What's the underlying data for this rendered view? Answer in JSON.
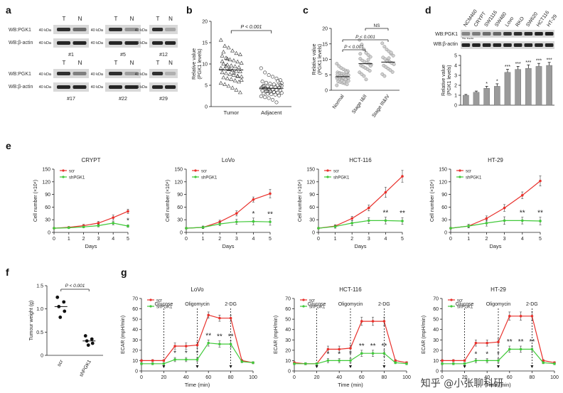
{
  "watermark": "知乎 @小张聊科研",
  "panel_letters": [
    "a",
    "b",
    "c",
    "d",
    "e",
    "f",
    "g"
  ],
  "panel_a": {
    "headers": [
      "T",
      "N"
    ],
    "row_labels": [
      "WB:PGK1",
      "WB:β-actin"
    ],
    "kda_pgk1": "40 kDa",
    "kda_actin": "40 kDa",
    "samples": [
      "#1",
      "#5",
      "#12",
      "#17",
      "#22",
      "#29"
    ]
  },
  "panel_c_ns": "NS",
  "panel_d": {
    "row_labels": [
      "WB:PGK1",
      "WB:β-actin"
    ],
    "kda": "40 kDa"
  },
  "chart_data": [
    {
      "id": "b",
      "type": "scatter",
      "categories": [
        "Tumor",
        "Adjacent"
      ],
      "ylabel": "Relative value\n(PGK1 levels)",
      "ylim": [
        0,
        20
      ],
      "yticks": [
        0,
        5,
        10,
        15,
        20
      ],
      "annotation": "P < 0.001",
      "means": [
        8.6,
        4.3
      ],
      "points": [
        [
          15.6,
          14.2,
          13.8,
          13.1,
          12.5,
          12.2,
          11.9,
          11.4,
          11.0,
          10.8,
          10.5,
          10.2,
          10.0,
          9.8,
          9.6,
          9.4,
          9.2,
          9.0,
          8.9,
          8.7,
          8.5,
          8.3,
          8.2,
          8.0,
          7.8,
          7.6,
          7.4,
          7.2,
          7.0,
          6.8,
          6.6,
          6.4,
          6.1,
          5.8,
          5.5,
          5.2,
          4.8,
          4.4,
          3.9,
          3.3,
          10.6,
          9.5,
          8.8,
          7.9,
          7.1,
          6.2,
          12.8,
          11.2
        ],
        [
          9.0,
          8.0,
          7.4,
          7.0,
          6.6,
          6.2,
          5.9,
          5.6,
          5.4,
          5.2,
          5.0,
          4.9,
          4.8,
          4.7,
          4.6,
          4.5,
          4.4,
          4.3,
          4.2,
          4.1,
          4.0,
          3.9,
          3.8,
          3.7,
          3.6,
          3.5,
          3.4,
          3.3,
          3.2,
          3.1,
          3.0,
          2.9,
          2.8,
          2.6,
          2.4,
          2.2,
          2.0,
          1.6,
          1.0,
          5.1,
          4.6,
          4.2,
          3.8,
          3.4,
          6.0,
          5.5,
          4.9,
          3.6
        ]
      ]
    },
    {
      "id": "c",
      "type": "scatter",
      "categories": [
        "Normal",
        "Stage I&II",
        "Stage III&IV"
      ],
      "ylabel": "Relative value\n(PGK1 levels)",
      "ylim": [
        0,
        20
      ],
      "yticks": [
        0,
        5,
        10,
        15,
        20
      ],
      "annotations": [
        "P < 0.001",
        "P < 0.001",
        "NS"
      ],
      "means": [
        4.4,
        8.6,
        9.1
      ],
      "points": [
        [
          8.6,
          7.8,
          7.2,
          6.8,
          6.4,
          6.0,
          5.8,
          5.6,
          5.4,
          5.2,
          5.0,
          4.9,
          4.8,
          4.6,
          4.5,
          4.4,
          4.3,
          4.2,
          4.1,
          4.0,
          3.9,
          3.8,
          3.7,
          3.6,
          3.5,
          3.4,
          3.3,
          3.2,
          3.0,
          2.8,
          2.6,
          2.4,
          2.2,
          1.9,
          1.6,
          5.3,
          4.7,
          4.1,
          3.5,
          6.2,
          5.1,
          4.4,
          3.1,
          2.7,
          5.9,
          4.0
        ],
        [
          16.3,
          14.8,
          13.2,
          12.1,
          11.4,
          10.8,
          10.2,
          9.6,
          9.2,
          8.9,
          8.6,
          8.3,
          8.0,
          7.6,
          7.2,
          6.8,
          6.3,
          5.8,
          5.2,
          4.6,
          3.5,
          9.9,
          7.9,
          11.8
        ],
        [
          15.2,
          14.1,
          13.2,
          12.6,
          11.8,
          11.2,
          10.6,
          10.1,
          9.6,
          9.2,
          8.8,
          8.4,
          8.0,
          7.5,
          7.0,
          6.5,
          5.9,
          5.2,
          4.6,
          9.4,
          10.4,
          12.2
        ]
      ]
    },
    {
      "id": "d",
      "type": "bar",
      "categories": [
        "NCM460",
        "CRYPT",
        "SW1116",
        "SW480",
        "Lovo",
        "RKO",
        "SW620",
        "HCT116",
        "HT-29"
      ],
      "values": [
        1.0,
        1.3,
        1.7,
        1.9,
        3.3,
        3.6,
        3.7,
        3.9,
        4.0
      ],
      "errors": [
        0.08,
        0.12,
        0.2,
        0.25,
        0.3,
        0.3,
        0.35,
        0.3,
        0.3
      ],
      "stars": [
        "",
        "",
        "*",
        "*",
        "***",
        "***",
        "***",
        "***",
        "***"
      ],
      "ylabel": "Relative value\n(PGK1 levels)",
      "ylim": [
        0,
        5
      ],
      "yticks": [
        0,
        1,
        2,
        3,
        4,
        5
      ]
    },
    {
      "id": "e1",
      "type": "line",
      "title": "CRYPT",
      "x": [
        0,
        1,
        2,
        3,
        4,
        5
      ],
      "xlabel": "Days",
      "ylabel": "Cell number (×10⁴)",
      "ylim": [
        0,
        150
      ],
      "yticks": [
        0,
        30,
        60,
        90,
        120,
        150
      ],
      "series": [
        {
          "name": "scr",
          "color": "#e8302b",
          "values": [
            10,
            12,
            16,
            22,
            35,
            50
          ],
          "errors": [
            2,
            2,
            3,
            4,
            6,
            5
          ]
        },
        {
          "name": "shPGK1",
          "color": "#41c93a",
          "values": [
            10,
            11,
            13,
            16,
            22,
            15
          ],
          "errors": [
            2,
            2,
            2,
            3,
            4,
            3
          ]
        }
      ],
      "stars": [
        "",
        "",
        "",
        "",
        "",
        "*"
      ]
    },
    {
      "id": "e2",
      "type": "line",
      "title": "LoVo",
      "x": [
        0,
        1,
        2,
        3,
        4,
        5
      ],
      "xlabel": "Days",
      "ylabel": "Cell number (×10⁴)",
      "ylim": [
        0,
        150
      ],
      "yticks": [
        0,
        30,
        60,
        90,
        120,
        150
      ],
      "series": [
        {
          "name": "scr",
          "color": "#e8302b",
          "values": [
            10,
            12,
            25,
            45,
            78,
            92
          ],
          "errors": [
            2,
            3,
            4,
            6,
            6,
            10
          ]
        },
        {
          "name": "shPGK1",
          "color": "#41c93a",
          "values": [
            10,
            12,
            20,
            25,
            26,
            25
          ],
          "errors": [
            2,
            3,
            4,
            6,
            8,
            8
          ]
        }
      ],
      "stars": [
        "",
        "",
        "",
        "",
        "*",
        "**"
      ]
    },
    {
      "id": "e3",
      "type": "line",
      "title": "HCT-116",
      "x": [
        0,
        1,
        2,
        3,
        4,
        5
      ],
      "xlabel": "Days",
      "ylabel": "Cell number (×10⁴)",
      "ylim": [
        0,
        150
      ],
      "yticks": [
        0,
        30,
        60,
        90,
        120,
        150
      ],
      "series": [
        {
          "name": "scr",
          "color": "#e8302b",
          "values": [
            10,
            15,
            33,
            58,
            95,
            133
          ],
          "errors": [
            2,
            3,
            5,
            7,
            12,
            14
          ]
        },
        {
          "name": "shPGK1",
          "color": "#41c93a",
          "values": [
            10,
            14,
            22,
            28,
            28,
            27
          ],
          "errors": [
            2,
            4,
            6,
            7,
            8,
            8
          ]
        }
      ],
      "stars": [
        "",
        "",
        "",
        "",
        "**",
        "**"
      ]
    },
    {
      "id": "e4",
      "type": "line",
      "title": "HT-29",
      "x": [
        0,
        1,
        2,
        3,
        4,
        5
      ],
      "xlabel": "Days",
      "ylabel": "Cell number (×10⁴)",
      "ylim": [
        0,
        150
      ],
      "yticks": [
        0,
        30,
        60,
        90,
        120,
        150
      ],
      "series": [
        {
          "name": "scr",
          "color": "#e8302b",
          "values": [
            10,
            15,
            33,
            58,
            88,
            122
          ],
          "errors": [
            2,
            4,
            6,
            8,
            8,
            12
          ]
        },
        {
          "name": "shPGK1",
          "color": "#41c93a",
          "values": [
            10,
            15,
            22,
            28,
            28,
            27
          ],
          "errors": [
            2,
            4,
            7,
            9,
            8,
            9
          ]
        }
      ],
      "stars": [
        "",
        "",
        "",
        "",
        "**",
        "**"
      ]
    },
    {
      "id": "f",
      "type": "scatter",
      "categories": [
        "scr",
        "shPGK1"
      ],
      "ylabel": "Tumour weight (g)",
      "ylim": [
        0,
        1.5
      ],
      "yticks": [
        0,
        0.5,
        1.0,
        1.5
      ],
      "annotation": "P < 0.001",
      "means": [
        1.05,
        0.31
      ],
      "points": [
        [
          1.25,
          1.15,
          1.05,
          0.95,
          0.82
        ],
        [
          0.42,
          0.35,
          0.31,
          0.26,
          0.22
        ]
      ]
    },
    {
      "id": "g1",
      "type": "line",
      "title": "LoVo",
      "x": [
        0,
        10,
        20,
        30,
        40,
        50,
        60,
        70,
        80,
        90,
        100
      ],
      "xlabel": "Time (min)",
      "ylabel": "ECAR (mpH/min)",
      "ylim": [
        0,
        70
      ],
      "yticks": [
        0,
        10,
        20,
        30,
        40,
        50,
        60,
        70
      ],
      "annotations": [
        {
          "text": "Glucose",
          "x": 20
        },
        {
          "text": "Oligomycin",
          "x": 50
        },
        {
          "text": "2-DG",
          "x": 80
        }
      ],
      "series": [
        {
          "name": "scr",
          "color": "#e8302b",
          "values": [
            10,
            10,
            10,
            24,
            24,
            25,
            54,
            51,
            51,
            10,
            8
          ],
          "errors": [
            1,
            1,
            1,
            3,
            3,
            3,
            3,
            3,
            3,
            1,
            1
          ]
        },
        {
          "name": "shPGK1",
          "color": "#41c93a",
          "values": [
            7,
            7,
            7,
            11,
            11,
            11,
            27,
            26,
            26,
            9,
            8
          ],
          "errors": [
            1,
            1,
            1,
            2,
            2,
            2,
            3,
            3,
            3,
            1,
            1
          ]
        }
      ],
      "stars": [
        "",
        "",
        "",
        "*",
        "*",
        "*",
        "**",
        "**",
        "**",
        "",
        ""
      ]
    },
    {
      "id": "g2",
      "type": "line",
      "title": "HCT-116",
      "x": [
        0,
        10,
        20,
        30,
        40,
        50,
        60,
        70,
        80,
        90,
        100
      ],
      "xlabel": "Time (min)",
      "ylabel": "ECAR (mpH/min)",
      "ylim": [
        0,
        70
      ],
      "yticks": [
        0,
        10,
        20,
        30,
        40,
        50,
        60,
        70
      ],
      "annotations": [
        {
          "text": "Glucose",
          "x": 20
        },
        {
          "text": "Oligomycin",
          "x": 50
        },
        {
          "text": "2-DG",
          "x": 80
        }
      ],
      "series": [
        {
          "name": "scr",
          "color": "#e8302b",
          "values": [
            8,
            7,
            7,
            21,
            21,
            22,
            48,
            48,
            48,
            10,
            8
          ],
          "errors": [
            1,
            1,
            1,
            3,
            3,
            3,
            4,
            4,
            4,
            1,
            1
          ]
        },
        {
          "name": "shPGK1",
          "color": "#41c93a",
          "values": [
            7,
            7,
            7,
            10,
            10,
            10,
            17,
            17,
            17,
            8,
            7
          ],
          "errors": [
            1,
            1,
            1,
            2,
            2,
            2,
            3,
            3,
            3,
            1,
            1
          ]
        }
      ],
      "stars": [
        "",
        "",
        "",
        "*",
        "*",
        "*",
        "**",
        "**",
        "**",
        "",
        ""
      ]
    },
    {
      "id": "g3",
      "type": "line",
      "title": "HT-29",
      "x": [
        0,
        10,
        20,
        30,
        40,
        50,
        60,
        70,
        80,
        90,
        100
      ],
      "xlabel": "Time (min)",
      "ylabel": "ECAR (mpH/min)",
      "ylim": [
        0,
        70
      ],
      "yticks": [
        0,
        10,
        20,
        30,
        40,
        50,
        60,
        70
      ],
      "annotations": [
        {
          "text": "Glucose",
          "x": 20
        },
        {
          "text": "Oligomycin",
          "x": 50
        },
        {
          "text": "2-DG",
          "x": 80
        }
      ],
      "series": [
        {
          "name": "scr",
          "color": "#e8302b",
          "values": [
            10,
            10,
            10,
            27,
            27,
            28,
            53,
            53,
            53,
            10,
            8
          ],
          "errors": [
            1,
            1,
            1,
            3,
            3,
            3,
            4,
            4,
            4,
            1,
            1
          ]
        },
        {
          "name": "shPGK1",
          "color": "#41c93a",
          "values": [
            7,
            7,
            7,
            10,
            10,
            10,
            21,
            21,
            21,
            8,
            7
          ],
          "errors": [
            1,
            1,
            1,
            2,
            2,
            2,
            3,
            3,
            3,
            1,
            1
          ]
        }
      ],
      "stars": [
        "",
        "",
        "",
        "*",
        "*",
        "*",
        "**",
        "**",
        "**",
        "",
        ""
      ]
    }
  ]
}
